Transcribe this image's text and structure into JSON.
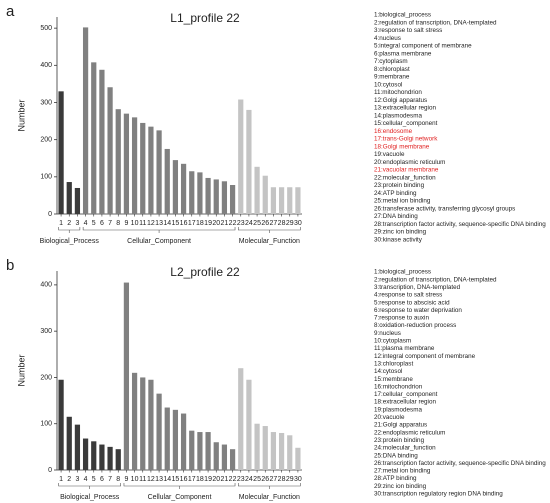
{
  "chart_data": [
    {
      "type": "bar",
      "panel": "a",
      "title": "L1_profile 22",
      "ylabel": "Number",
      "categories": [
        "1",
        "2",
        "3",
        "4",
        "5",
        "6",
        "7",
        "8",
        "9",
        "10",
        "11",
        "12",
        "13",
        "14",
        "15",
        "16",
        "17",
        "18",
        "19",
        "20",
        "21",
        "22",
        "23",
        "24",
        "25",
        "26",
        "27",
        "28",
        "29",
        "30"
      ],
      "series": [
        {
          "name": "Biological_Process",
          "color": "#3a3a3a",
          "values": [
            330,
            86,
            70,
            null,
            null,
            null,
            null,
            null,
            null,
            null,
            null,
            null,
            null,
            null,
            null,
            null,
            null,
            null,
            null,
            null,
            null,
            null,
            null,
            null,
            null,
            null,
            null,
            null,
            null,
            null
          ]
        },
        {
          "name": "Cellular_Component",
          "color": "#808080",
          "values": [
            null,
            null,
            null,
            502,
            408,
            388,
            341,
            282,
            270,
            260,
            245,
            235,
            225,
            175,
            145,
            135,
            115,
            112,
            97,
            93,
            88,
            78,
            null,
            null,
            null,
            null,
            null,
            null,
            null,
            null
          ]
        },
        {
          "name": "Molecular_Function",
          "color": "#c4c4c4",
          "values": [
            null,
            null,
            null,
            null,
            null,
            null,
            null,
            null,
            null,
            null,
            null,
            null,
            null,
            null,
            null,
            null,
            null,
            null,
            null,
            null,
            null,
            null,
            308,
            280,
            127,
            103,
            72,
            72,
            72,
            72
          ]
        }
      ],
      "ylim": [
        0,
        530
      ],
      "yticks": [
        0,
        100,
        200,
        300,
        400,
        500
      ],
      "legend": [
        "1:biological_process",
        "2:regulation of transcription, DNA-templated",
        "3:response to salt stress",
        "4:nucleus",
        "5:integral component of membrane",
        "6:plasma membrane",
        "7:cytoplasm",
        "8:chloroplast",
        "9:membrane",
        "10:cytosol",
        "11:mitochondrion",
        "12:Golgi apparatus",
        "13:extracellular region",
        "14:plasmodesma",
        "15:cellular_component",
        "16:endosome",
        "17:trans-Golgi network",
        "18:Golgi membrane",
        "19:vacuole",
        "20:endoplasmic reticulum",
        "21:vacuolar membrane",
        "22:molecular_function",
        "23:protein binding",
        "24:ATP binding",
        "25:metal ion binding",
        "26:transferase activity, transferring glycosyl groups",
        "27:DNA binding",
        "28:transcription factor activity, sequence-specific DNA binding",
        "29:zinc ion binding",
        "30:kinase activity"
      ],
      "legend_colors": [
        "#222",
        "#222",
        "#222",
        "#222",
        "#222",
        "#222",
        "#222",
        "#222",
        "#222",
        "#222",
        "#222",
        "#222",
        "#222",
        "#222",
        "#222",
        "#e02020",
        "#e02020",
        "#e02020",
        "#222",
        "#222",
        "#e02020",
        "#222",
        "#222",
        "#222",
        "#222",
        "#222",
        "#222",
        "#222",
        "#222",
        "#222"
      ]
    },
    {
      "type": "bar",
      "panel": "b",
      "title": "L2_profile 22",
      "ylabel": "Number",
      "categories": [
        "1",
        "2",
        "3",
        "4",
        "5",
        "6",
        "7",
        "8",
        "9",
        "10",
        "11",
        "12",
        "13",
        "14",
        "15",
        "16",
        "17",
        "18",
        "19",
        "20",
        "21",
        "22",
        "23",
        "24",
        "25",
        "26",
        "27",
        "28",
        "29",
        "30"
      ],
      "series": [
        {
          "name": "Biological_Process",
          "color": "#3a3a3a",
          "values": [
            195,
            115,
            98,
            68,
            62,
            55,
            50,
            45,
            null,
            null,
            null,
            null,
            null,
            null,
            null,
            null,
            null,
            null,
            null,
            null,
            null,
            null,
            null,
            null,
            null,
            null,
            null,
            null,
            null,
            null
          ]
        },
        {
          "name": "Cellular_Component",
          "color": "#808080",
          "values": [
            null,
            null,
            null,
            null,
            null,
            null,
            null,
            null,
            405,
            210,
            200,
            195,
            165,
            135,
            130,
            122,
            85,
            82,
            82,
            60,
            55,
            45,
            null,
            null,
            null,
            null,
            null,
            null,
            null,
            null
          ]
        },
        {
          "name": "Molecular_Function",
          "color": "#c4c4c4",
          "values": [
            null,
            null,
            null,
            null,
            null,
            null,
            null,
            null,
            null,
            null,
            null,
            null,
            null,
            null,
            null,
            null,
            null,
            null,
            null,
            null,
            null,
            null,
            220,
            195,
            100,
            95,
            82,
            80,
            75,
            48
          ]
        }
      ],
      "ylim": [
        0,
        430
      ],
      "yticks": [
        0,
        100,
        200,
        300,
        400
      ],
      "legend": [
        "1:biological_process",
        "2:regulation of transcription, DNA-templated",
        "3:transcription, DNA-templated",
        "4:response to salt stress",
        "5:response to abscisic acid",
        "6:response to water deprivation",
        "7:response to auxin",
        "8:oxidation-reduction process",
        "9:nucleus",
        "10:cytoplasm",
        "11:plasma membrane",
        "12:integral component of membrane",
        "13:chloroplast",
        "14:cytosol",
        "15:membrane",
        "16:mitochondrion",
        "17:cellular_component",
        "18:extracellular region",
        "19:plasmodesma",
        "20:vacuole",
        "21:Golgi apparatus",
        "22:endoplasmic reticulum",
        "23:protein binding",
        "24:molecular_function",
        "25:DNA binding",
        "26:transcription factor activity, sequence-specific DNA binding",
        "27:metal ion binding",
        "28:ATP binding",
        "29:zinc ion binding",
        "30:transcription regulatory region DNA binding"
      ],
      "legend_colors": [
        "#222",
        "#222",
        "#222",
        "#222",
        "#222",
        "#222",
        "#222",
        "#222",
        "#222",
        "#222",
        "#222",
        "#222",
        "#222",
        "#222",
        "#222",
        "#222",
        "#222",
        "#222",
        "#222",
        "#222",
        "#222",
        "#222",
        "#222",
        "#222",
        "#222",
        "#222",
        "#222",
        "#222",
        "#222",
        "#222"
      ]
    }
  ]
}
